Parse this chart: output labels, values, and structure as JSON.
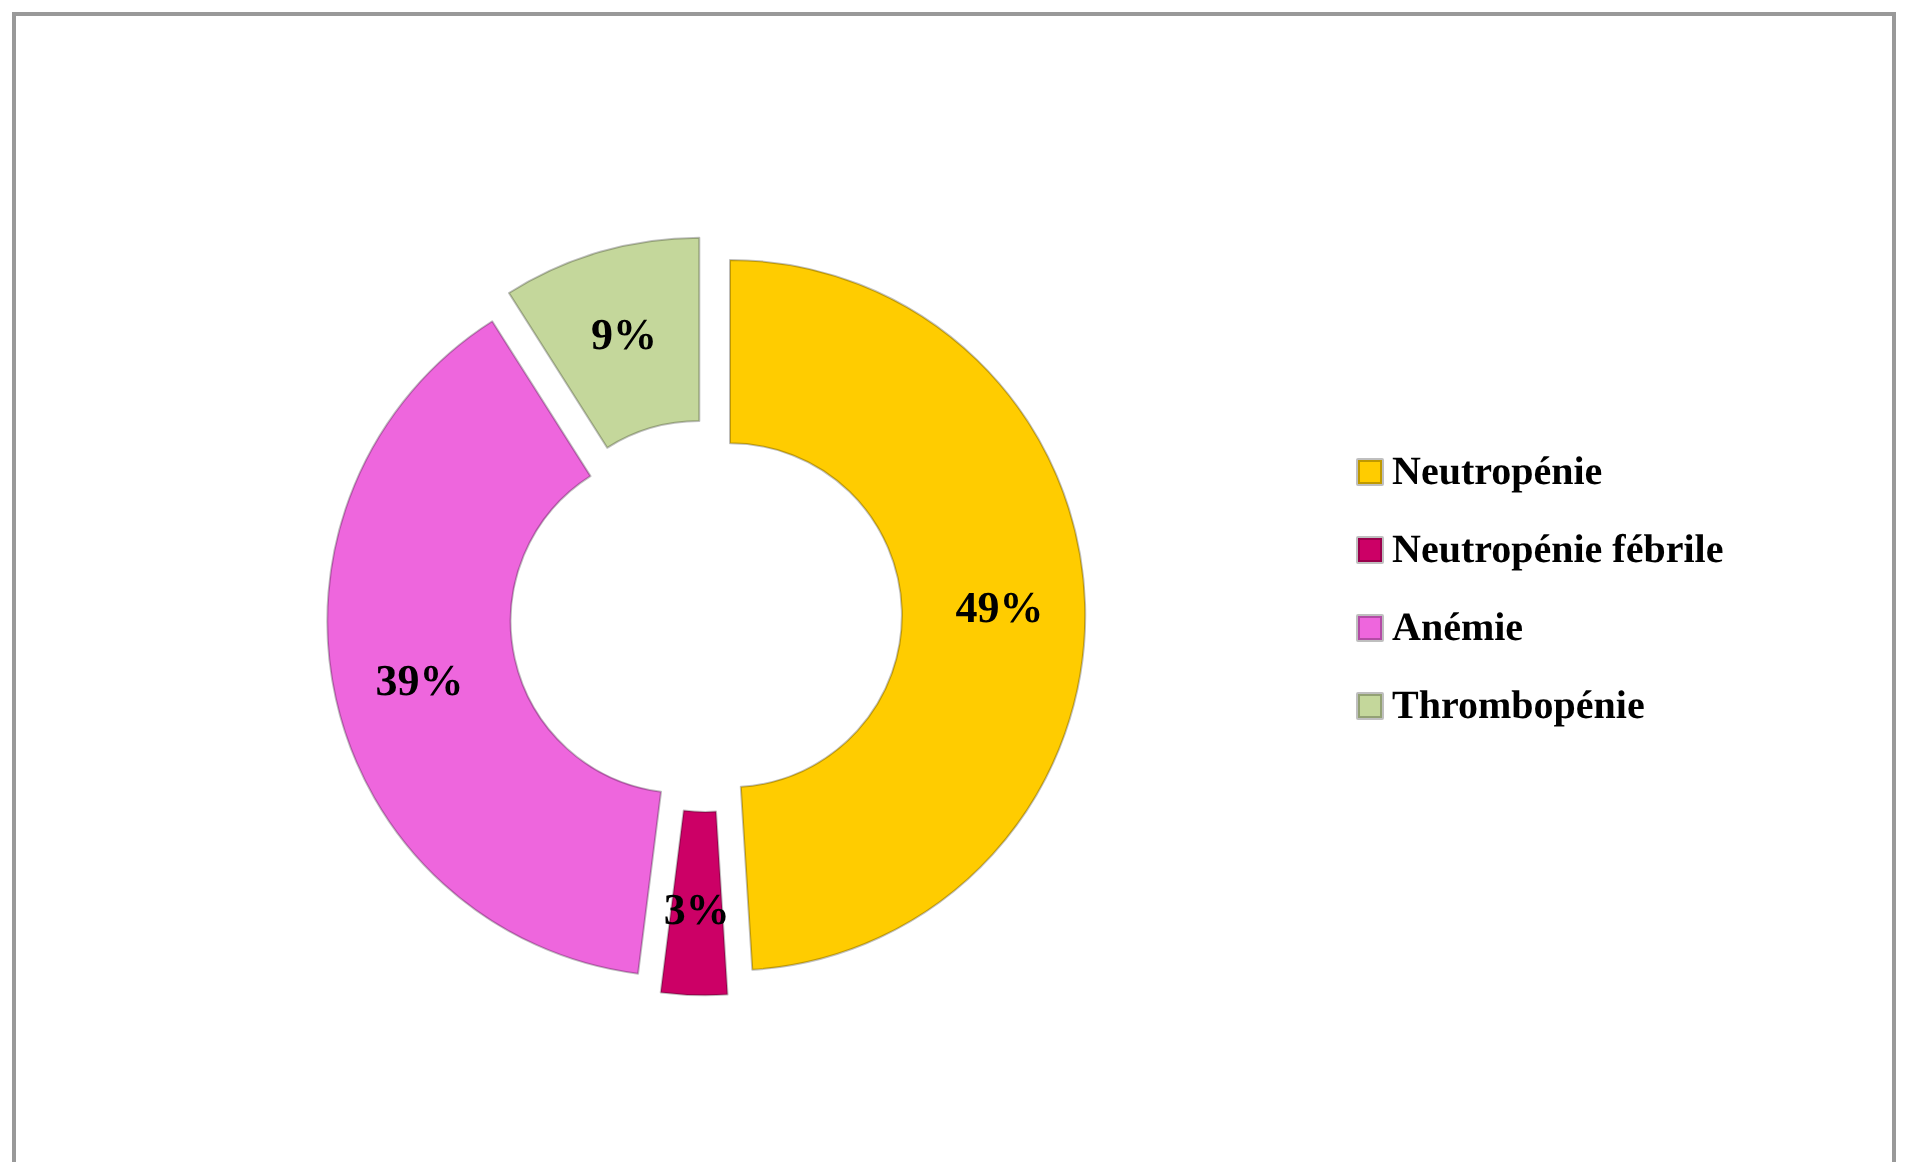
{
  "chart_data": {
    "type": "donut",
    "categories": [
      "Neutropénie",
      "Neutropénie fébrile",
      "Anémie",
      "Thrombopénie"
    ],
    "values": [
      49,
      3,
      39,
      9
    ],
    "colors": [
      "#ffcc00",
      "#cc0066",
      "#ee66dd",
      "#c4d79b"
    ],
    "value_labels": [
      "49%",
      "3%",
      "39%",
      "9%"
    ],
    "legend": "right"
  }
}
